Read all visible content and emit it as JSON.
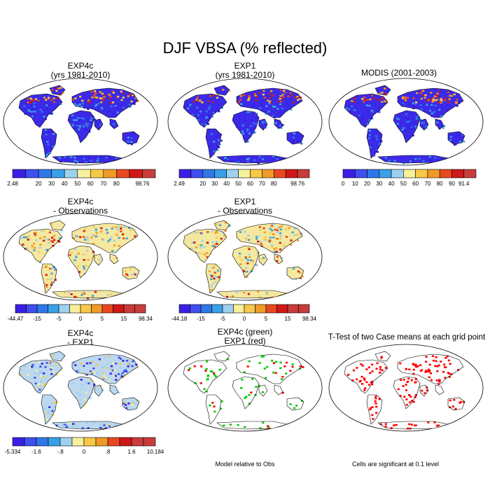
{
  "figure_title": "DJF VBSA (% reflected)",
  "panels": [
    {
      "title": [
        "EXP4c",
        "(yrs 1981-2010)"
      ],
      "kind": "abs"
    },
    {
      "title": [
        "EXP1",
        "(yrs 1981-2010)"
      ],
      "kind": "abs"
    },
    {
      "title": [
        "MODIS (2001-2003)"
      ],
      "kind": "abs"
    },
    {
      "title": [
        "EXP4c",
        "- Observations"
      ],
      "kind": "diff"
    },
    {
      "title": [
        "EXP1",
        "- Observations"
      ],
      "kind": "diff"
    },
    {
      "title": [
        "EXP4c",
        "- EXP1"
      ],
      "kind": "diff2"
    },
    {
      "title": [
        "EXP4c (green)",
        "EXP1 (red)"
      ],
      "kind": "model"
    },
    {
      "title": [
        "T-Test of two Case means at each grid point"
      ],
      "kind": "ttest"
    }
  ],
  "colorbars": [
    {
      "labels": [
        "2.48",
        "",
        "20",
        "30",
        "40",
        "50",
        "60",
        "70",
        "80",
        "",
        "98.76"
      ],
      "colors": [
        "#3b1ee6",
        "#3f4ff0",
        "#2f78e8",
        "#3aa0e8",
        "#9ed0f0",
        "#f7f09a",
        "#f7c84a",
        "#f09a28",
        "#e84820",
        "#d01818",
        "#c83c3c"
      ]
    },
    {
      "labels": [
        "2.49",
        "",
        "20",
        "30",
        "40",
        "50",
        "60",
        "70",
        "80",
        "",
        "98.76"
      ],
      "colors": [
        "#3b1ee6",
        "#3f4ff0",
        "#2f78e8",
        "#3aa0e8",
        "#9ed0f0",
        "#f7f09a",
        "#f7c84a",
        "#f09a28",
        "#e84820",
        "#d01818",
        "#c83c3c"
      ]
    },
    {
      "labels": [
        "0",
        "10",
        "20",
        "30",
        "40",
        "50",
        "60",
        "70",
        "80",
        "90",
        "91.4"
      ],
      "colors": [
        "#3b1ee6",
        "#3f4ff0",
        "#2f78e8",
        "#3aa0e8",
        "#9ed0f0",
        "#f7f09a",
        "#f7c84a",
        "#f09a28",
        "#e84820",
        "#d01818",
        "#c83c3c"
      ]
    },
    {
      "labels": [
        "-44.47",
        "",
        "-15",
        "",
        "-5",
        "",
        "0",
        "",
        "5",
        "",
        "15",
        "",
        "98.34"
      ],
      "colors": [
        "#3b1ee6",
        "#3f4ff0",
        "#2f78e8",
        "#3aa0e8",
        "#9ed0f0",
        "#f7f09a",
        "#f7c84a",
        "#f09a28",
        "#e84820",
        "#d01818",
        "#c83c3c",
        "#c83c3c"
      ]
    },
    {
      "labels": [
        "-44.18",
        "",
        "-15",
        "",
        "-5",
        "",
        "0",
        "",
        "5",
        "",
        "15",
        "",
        "98.34"
      ],
      "colors": [
        "#3b1ee6",
        "#3f4ff0",
        "#2f78e8",
        "#3aa0e8",
        "#9ed0f0",
        "#f7f09a",
        "#f7c84a",
        "#f09a28",
        "#e84820",
        "#d01818",
        "#c83c3c",
        "#c83c3c"
      ]
    },
    {
      "labels": [
        "-5.334",
        "",
        "-1.6",
        "",
        "-.8",
        "",
        "0",
        "",
        ".8",
        "",
        "1.6",
        "",
        "10.184"
      ],
      "colors": [
        "#3b1ee6",
        "#3f4ff0",
        "#2f78e8",
        "#3aa0e8",
        "#9ed0f0",
        "#f7f09a",
        "#f7c84a",
        "#f09a28",
        "#e84820",
        "#d01818",
        "#c83c3c",
        "#c83c3c"
      ]
    }
  ],
  "notes": {
    "model": "Model relative to Obs",
    "ttest": "Cells are significant at 0.1 level"
  },
  "colors": {
    "ocean": "#ffffff",
    "coast": "#000000",
    "sig_red": "#ff0000",
    "exp4c_green": "#00cc00"
  }
}
